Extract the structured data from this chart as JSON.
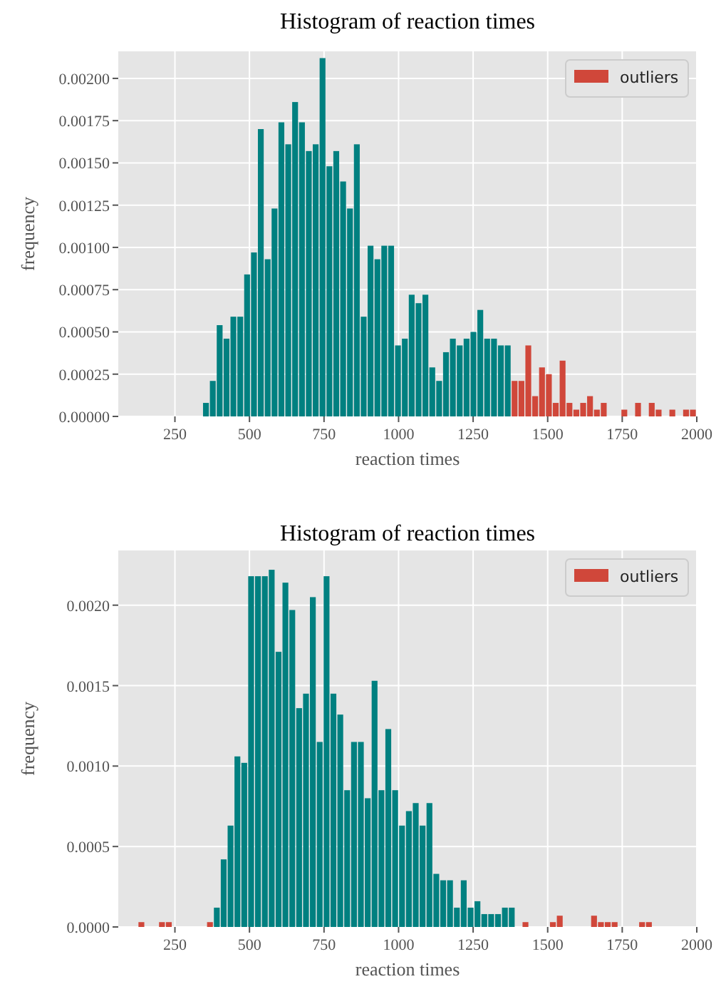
{
  "chart_data": [
    {
      "type": "histogram",
      "title": "Histogram of reaction times",
      "xlabel": "reaction times",
      "ylabel": "frequency",
      "xlim": [
        60,
        2000
      ],
      "ylim": [
        0,
        0.00216
      ],
      "xticks": [
        250,
        500,
        750,
        1000,
        1250,
        1500,
        1750,
        2000
      ],
      "yticks": [
        {
          "value": 0,
          "label": "0.00000"
        },
        {
          "value": 0.00025,
          "label": "0.00025"
        },
        {
          "value": 0.0005,
          "label": "0.00050"
        },
        {
          "value": 0.00075,
          "label": "0.00075"
        },
        {
          "value": 0.001,
          "label": "0.00100"
        },
        {
          "value": 0.00125,
          "label": "0.00125"
        },
        {
          "value": 0.0015,
          "label": "0.00150"
        },
        {
          "value": 0.00175,
          "label": "0.00175"
        },
        {
          "value": 0.002,
          "label": "0.00200"
        }
      ],
      "grid": true,
      "legend": "top right",
      "bins": [
        342.5,
        365.5,
        388.5,
        411.5,
        434.5,
        457.5,
        480.5,
        503.5,
        526.5,
        549.5,
        572.5,
        595.5,
        618.5,
        641.5,
        664.5,
        687.5,
        710.5,
        733.5,
        756.5,
        779.5,
        802.5,
        825.5,
        848.5,
        871.5,
        894.5,
        917.5,
        940.5,
        963.5,
        986.5,
        1009.5,
        1032.5,
        1055.5,
        1078.5,
        1101.5,
        1124.5,
        1147.5,
        1170.5,
        1193.5,
        1216.5,
        1239.5,
        1262.5,
        1285.5,
        1308.5,
        1331.5,
        1354.5,
        1377.5,
        1400.5,
        1423.5,
        1446.5,
        1469.5,
        1492.5,
        1515.5,
        1538.5,
        1561.5,
        1584.5,
        1607.5,
        1630.5,
        1653.5,
        1676.5,
        1699.5,
        1722.5,
        1745.5,
        1768.5,
        1791.5,
        1814.5,
        1837.5,
        1860.5,
        1883.5,
        1906.5,
        1929.5,
        1952.5,
        1975.5,
        1998.5
      ],
      "series": [
        {
          "color": "#008080",
          "values": [
            8e-05,
            0.00021,
            0.00054,
            0.00046,
            0.00059,
            0.00059,
            0.00084,
            0.00097,
            0.0017,
            0.00093,
            0.00123,
            0.00174,
            0.00161,
            0.00186,
            0.00174,
            0.00157,
            0.00161,
            0.00212,
            0.00148,
            0.00157,
            0.00139,
            0.00123,
            0.00161,
            0.00059,
            0.00101,
            0.00093,
            0.00101,
            0.00101,
            0.00042,
            0.00046,
            0.00072,
            0.00067,
            0.00072,
            0.00029,
            0.00021,
            0.00038,
            0.00046,
            0.00042,
            0.00046,
            0.0005,
            0.00063,
            0.00046,
            0.00046,
            0.00042,
            0.00042,
            null,
            null,
            null,
            null,
            null,
            null,
            null,
            null,
            null,
            null,
            null,
            null,
            null,
            null,
            null,
            null,
            null,
            null,
            null,
            null,
            null,
            null,
            null,
            null,
            null,
            null,
            null
          ]
        },
        {
          "name": "outliers",
          "color": "#d0473a",
          "values": [
            null,
            null,
            null,
            null,
            null,
            null,
            null,
            null,
            null,
            null,
            null,
            null,
            null,
            null,
            null,
            null,
            null,
            null,
            null,
            null,
            null,
            null,
            null,
            null,
            null,
            null,
            null,
            null,
            null,
            null,
            null,
            null,
            null,
            null,
            null,
            null,
            null,
            null,
            null,
            null,
            null,
            null,
            null,
            null,
            null,
            0.00021,
            0.00021,
            0.00042,
            0.00012,
            0.00029,
            0.00025,
            8e-05,
            0.00033,
            8e-05,
            4e-05,
            8e-05,
            0.00012,
            4e-05,
            8e-05,
            0,
            0,
            4e-05,
            0,
            8e-05,
            0,
            8e-05,
            4e-05,
            0,
            4e-05,
            0,
            4e-05,
            4e-05
          ]
        }
      ]
    },
    {
      "type": "histogram",
      "title": "Histogram of reaction times",
      "xlabel": "reaction times",
      "ylabel": "frequency",
      "xlim": [
        60,
        2000
      ],
      "ylim": [
        0,
        0.00234
      ],
      "xticks": [
        250,
        500,
        750,
        1000,
        1250,
        1500,
        1750,
        2000
      ],
      "yticks": [
        {
          "value": 0,
          "label": "0.0000"
        },
        {
          "value": 0.0005,
          "label": "0.0005"
        },
        {
          "value": 0.001,
          "label": "0.0010"
        },
        {
          "value": 0.0015,
          "label": "0.0015"
        },
        {
          "value": 0.002,
          "label": "0.0020"
        }
      ],
      "grid": true,
      "legend": "top right",
      "bins": [
        126,
        149,
        172,
        195,
        218,
        241,
        264,
        287,
        310,
        333,
        356,
        379,
        402,
        425,
        448,
        471,
        494,
        517,
        540,
        563,
        586,
        609,
        632,
        655,
        678,
        701,
        724,
        747,
        770,
        793,
        816,
        839,
        862,
        885,
        908,
        931,
        954,
        977,
        1000,
        1023,
        1046,
        1069,
        1092,
        1115,
        1138,
        1161,
        1184,
        1207,
        1230,
        1253,
        1276,
        1299,
        1322,
        1345,
        1368,
        1391,
        1414,
        1437,
        1460,
        1483,
        1506,
        1529,
        1552,
        1575,
        1598,
        1621,
        1644,
        1667,
        1690,
        1713,
        1736,
        1759,
        1782,
        1805,
        1828,
        1851
      ],
      "series": [
        {
          "color": "#008080",
          "values": [
            null,
            null,
            null,
            null,
            null,
            null,
            null,
            null,
            null,
            null,
            null,
            0.00012,
            0.00042,
            0.00063,
            0.00106,
            0.00102,
            0.00218,
            0.00218,
            0.00218,
            0.00222,
            0.00171,
            0.00214,
            0.00197,
            0.00136,
            0.00145,
            0.00205,
            0.00115,
            0.00218,
            0.00145,
            0.00132,
            0.00085,
            0.00115,
            0.00115,
            0.0008,
            0.00153,
            0.00085,
            0.00123,
            0.00085,
            0.00063,
            0.00072,
            0.00077,
            0.00063,
            0.00077,
            0.00033,
            0.00029,
            0.00029,
            0.00012,
            0.00029,
            0.00012,
            0.00016,
            8e-05,
            8e-05,
            8e-05,
            0.00012,
            0.00012,
            null,
            null,
            null,
            null,
            null,
            null,
            null,
            null,
            null,
            null,
            null,
            null,
            null,
            null,
            null,
            null,
            null,
            null,
            null,
            null
          ]
        },
        {
          "name": "outliers",
          "color": "#d0473a",
          "values": [
            3e-05,
            0,
            0,
            3e-05,
            3e-05,
            0,
            0,
            0,
            0,
            0,
            3e-05,
            null,
            null,
            null,
            null,
            null,
            null,
            null,
            null,
            null,
            null,
            null,
            null,
            null,
            null,
            null,
            null,
            null,
            null,
            null,
            null,
            null,
            null,
            null,
            null,
            null,
            null,
            null,
            null,
            null,
            null,
            null,
            null,
            null,
            null,
            null,
            null,
            null,
            null,
            null,
            null,
            null,
            null,
            null,
            null,
            0,
            3e-05,
            0,
            0,
            0,
            3e-05,
            7e-05,
            0,
            0,
            0,
            0,
            7e-05,
            3e-05,
            3e-05,
            3e-05,
            0,
            0,
            0,
            3e-05,
            3e-05
          ]
        }
      ]
    }
  ]
}
